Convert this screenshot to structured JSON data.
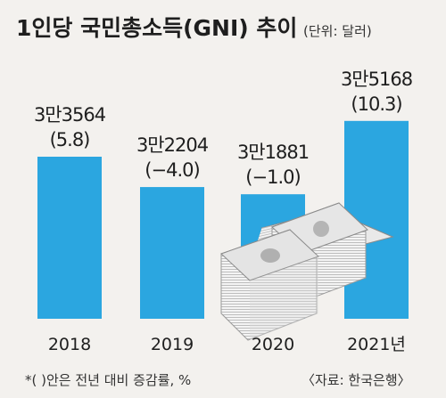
{
  "colors": {
    "bar": "#2ba6e0",
    "background": "#f3f1ee"
  },
  "chart_data": {
    "type": "bar",
    "title": "1인당 국민총소득(GNI) 추이",
    "unit": "(단위: 달러)",
    "categories": [
      "2018",
      "2019",
      "2020",
      "2021년"
    ],
    "values": [
      33564,
      32204,
      31881,
      35168
    ],
    "value_labels": [
      "3만3564",
      "3만2204",
      "3만1881",
      "3만5168"
    ],
    "growth_labels": [
      "(5.8)",
      "(−4.0)",
      "(−1.0)",
      "(10.3)"
    ],
    "footnote": "*(  )안은 전년 대비 증감률, %",
    "source": "〈자료: 한국은행〉",
    "decoration": "money-stack-icon"
  }
}
